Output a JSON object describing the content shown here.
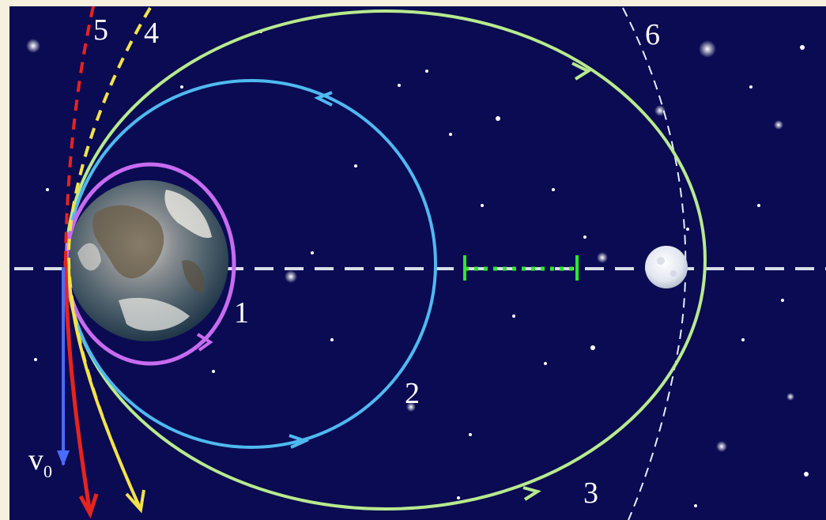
{
  "labels": {
    "orbit_1": "1",
    "orbit_2": "2",
    "orbit_3": "3",
    "orbit_4": "4",
    "orbit_5": "5",
    "orbit_6": "6",
    "velocity": "v",
    "velocity_sub": "0"
  },
  "colors": {
    "background": "#0a0b52",
    "frame": "#f6f1de",
    "orbit_1": "#c86bf0",
    "orbit_2": "#4fb9f0",
    "orbit_3": "#b8ea8e",
    "orbit_4": "#f4e24a",
    "orbit_5": "#e8231f",
    "orbit_6": "#e6ecff",
    "velocity_vector": "#4a6bff",
    "axis": "#d9dde9",
    "focus_segment": "#2ee82e"
  },
  "icons": {
    "earth": "earth-icon",
    "moon": "moon-icon"
  }
}
